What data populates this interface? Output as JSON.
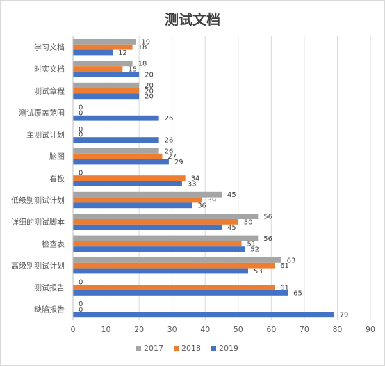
{
  "chart_data": {
    "type": "bar",
    "orientation": "horizontal",
    "title": "测试文档",
    "xlabel": "",
    "ylabel": "",
    "xlim": [
      0,
      90
    ],
    "ticks": [
      "0",
      "10",
      "20",
      "30",
      "40",
      "50",
      "60",
      "70",
      "80",
      "90"
    ],
    "grid": true,
    "legend_position": "bottom",
    "categories": [
      "学习文档",
      "时实文档",
      "测试章程",
      "测试覆盖范围",
      "主测试计划",
      "脑图",
      "看板",
      "低级别测试计划",
      "详细的测试脚本",
      "检查表",
      "高级别测试计划",
      "测试报告",
      "缺陷报告"
    ],
    "series": [
      {
        "name": "2017",
        "color": "#a5a5a5",
        "values": [
          19,
          18,
          20,
          0,
          0,
          26,
          0,
          45,
          56,
          56,
          63,
          0,
          0
        ]
      },
      {
        "name": "2018",
        "color": "#ed7d31",
        "values": [
          18,
          15,
          20,
          0,
          0,
          27,
          34,
          39,
          50,
          51,
          61,
          61,
          0
        ]
      },
      {
        "name": "2019",
        "color": "#4472c4",
        "values": [
          12,
          20,
          20,
          26,
          26,
          29,
          33,
          36,
          45,
          52,
          53,
          65,
          79
        ]
      }
    ]
  }
}
